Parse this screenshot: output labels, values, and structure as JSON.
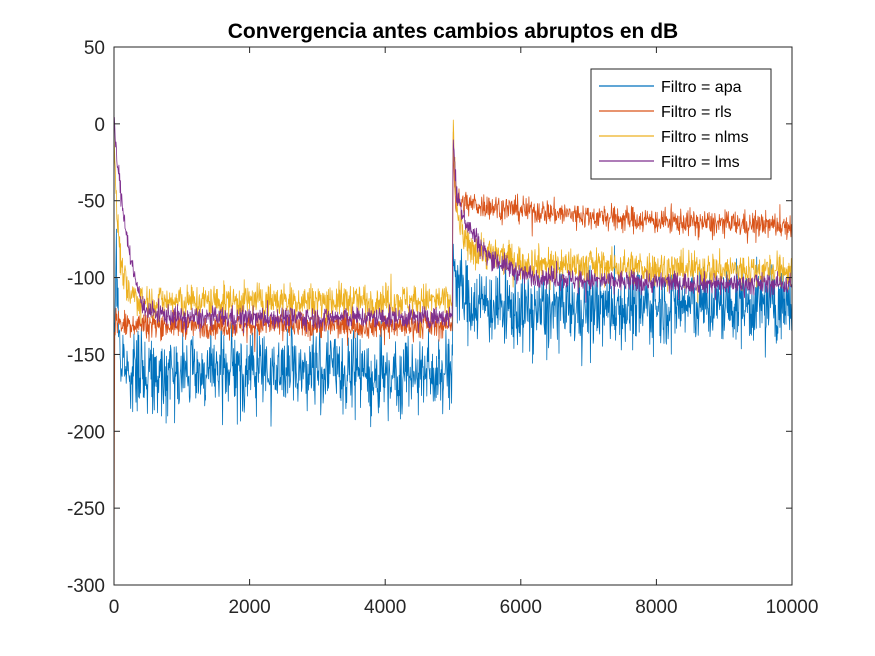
{
  "chart_data": {
    "type": "line",
    "title": "Convergencia antes cambios abruptos en dB",
    "xlabel": "",
    "ylabel": "",
    "xlim": [
      0,
      10000
    ],
    "ylim": [
      -300,
      50
    ],
    "xticks": [
      0,
      2000,
      4000,
      6000,
      8000,
      10000
    ],
    "xtick_labels": [
      "0",
      "2000",
      "4000",
      "6000",
      "8000",
      "10000"
    ],
    "yticks": [
      50,
      0,
      -50,
      -100,
      -150,
      -200,
      -250,
      -300
    ],
    "ytick_labels": [
      "50",
      "0",
      "-50",
      "-100",
      "-150",
      "-200",
      "-250",
      "-300"
    ],
    "grid": false,
    "legend_position": "top-right",
    "change_point": 5000,
    "series": [
      {
        "name": "Filtro = apa",
        "color": "#0072BD",
        "x": [
          0,
          30,
          100,
          300,
          1000,
          2000,
          3000,
          4000,
          4990,
          5000,
          5050,
          5200,
          6000,
          7000,
          8000,
          9000,
          10000
        ],
        "y": [
          -150,
          -90,
          -155,
          -160,
          -162,
          -160,
          -160,
          -162,
          -162,
          -80,
          -100,
          -115,
          -122,
          -120,
          -118,
          -118,
          -117
        ],
        "noise": 18
      },
      {
        "name": "Filtro = rls",
        "color": "#D95319",
        "x": [
          0,
          10,
          30,
          60,
          200,
          1000,
          2000,
          3000,
          4000,
          4990,
          5000,
          5030,
          5200,
          6000,
          7000,
          8000,
          9000,
          10000
        ],
        "y": [
          -290,
          -140,
          -125,
          -130,
          -130,
          -131,
          -131,
          -131,
          -131,
          -131,
          0,
          -50,
          -52,
          -56,
          -60,
          -63,
          -65,
          -66
        ],
        "noise": 6
      },
      {
        "name": "Filtro = nlms",
        "color": "#EDB120",
        "x": [
          0,
          30,
          100,
          200,
          400,
          1000,
          2000,
          3000,
          4000,
          4990,
          5000,
          5050,
          5200,
          6000,
          7000,
          8000,
          9000,
          10000
        ],
        "y": [
          0,
          -50,
          -90,
          -110,
          -115,
          -116,
          -115,
          -115,
          -115,
          -115,
          0,
          -55,
          -80,
          -90,
          -92,
          -94,
          -95,
          -95
        ],
        "noise": 8
      },
      {
        "name": "Filtro = lms",
        "color": "#7E2F8E",
        "x": [
          0,
          50,
          100,
          200,
          300,
          400,
          500,
          1000,
          2000,
          3000,
          4000,
          4990,
          5000,
          5050,
          5200,
          5500,
          6000,
          7000,
          8000,
          9000,
          10000
        ],
        "y": [
          0,
          -25,
          -45,
          -75,
          -100,
          -115,
          -122,
          -126,
          -126,
          -126,
          -126,
          -126,
          -5,
          -45,
          -65,
          -85,
          -98,
          -102,
          -103,
          -104,
          -104
        ],
        "noise": 5
      }
    ]
  }
}
